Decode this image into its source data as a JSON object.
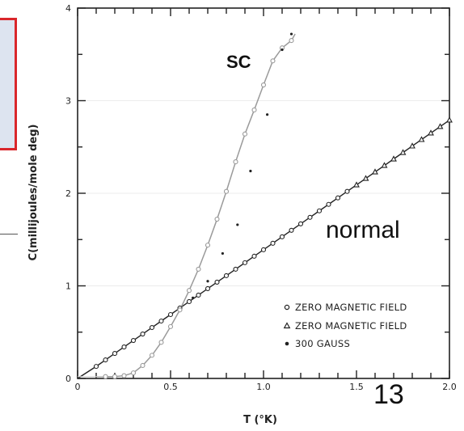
{
  "chart_data": {
    "type": "scatter",
    "xlabel": "T (°K)",
    "ylabel": "C(millijoules/mole deg)",
    "xlim": [
      0,
      2.0
    ],
    "ylim": [
      0,
      4
    ],
    "x_ticks": [
      0,
      0.5,
      1.0,
      1.5,
      2.0
    ],
    "x_tick_labels": [
      "0",
      "0.5",
      "1.0",
      "1.5",
      "2.0"
    ],
    "y_ticks": [
      0,
      1,
      2,
      3,
      4
    ],
    "y_tick_labels": [
      "0",
      "1",
      "2",
      "3",
      "4"
    ],
    "legend": {
      "placement": "lower-right",
      "entries": [
        {
          "marker": "open-circle",
          "label": "ZERO MAGNETIC FIELD"
        },
        {
          "marker": "open-triangle",
          "label": "ZERO MAGNETIC FIELD"
        },
        {
          "marker": "filled-dot",
          "label": "300 GAUSS"
        }
      ]
    },
    "annotations": {
      "sc": "SC",
      "normal": "normal",
      "page_number": "13"
    },
    "series": [
      {
        "marker": "open-circle",
        "color": "#222222",
        "x": [
          0.1,
          0.15,
          0.2,
          0.25,
          0.3,
          0.35,
          0.4,
          0.45,
          0.5,
          0.55,
          0.6,
          0.65,
          0.7,
          0.75,
          0.8,
          0.85,
          0.9,
          0.95,
          1.0,
          1.05,
          1.1,
          1.15,
          1.2,
          1.25,
          1.3,
          1.35,
          1.4,
          1.45
        ],
        "y": [
          0.13,
          0.2,
          0.27,
          0.34,
          0.41,
          0.48,
          0.55,
          0.62,
          0.69,
          0.76,
          0.83,
          0.9,
          0.97,
          1.04,
          1.11,
          1.18,
          1.25,
          1.32,
          1.39,
          1.46,
          1.53,
          1.6,
          1.67,
          1.74,
          1.81,
          1.88,
          1.95,
          2.02
        ]
      },
      {
        "marker": "open-triangle",
        "color": "#222222",
        "x": [
          1.5,
          1.55,
          1.6,
          1.65,
          1.7,
          1.75,
          1.8,
          1.85,
          1.9,
          1.95,
          2.0
        ],
        "y": [
          2.09,
          2.16,
          2.23,
          2.3,
          2.37,
          2.44,
          2.51,
          2.58,
          2.65,
          2.72,
          2.79
        ]
      },
      {
        "marker": "open-circle",
        "color": "#999999",
        "x": [
          0.15,
          0.2,
          0.25,
          0.3,
          0.35,
          0.4,
          0.45,
          0.5,
          0.55,
          0.6,
          0.65,
          0.7,
          0.75,
          0.8,
          0.85,
          0.9,
          0.95,
          1.0,
          1.05,
          1.1,
          1.15
        ],
        "y": [
          0.02,
          0.02,
          0.03,
          0.06,
          0.14,
          0.25,
          0.39,
          0.56,
          0.74,
          0.95,
          1.18,
          1.44,
          1.72,
          2.02,
          2.34,
          2.64,
          2.9,
          3.17,
          3.43,
          3.57,
          3.65
        ]
      },
      {
        "marker": "filled-dot",
        "color": "#222222",
        "x": [
          0.62,
          0.7,
          0.78,
          0.86,
          0.93,
          1.02,
          1.1,
          1.15
        ],
        "y": [
          0.87,
          1.05,
          1.35,
          1.66,
          2.24,
          2.85,
          3.55,
          3.72
        ]
      }
    ]
  }
}
